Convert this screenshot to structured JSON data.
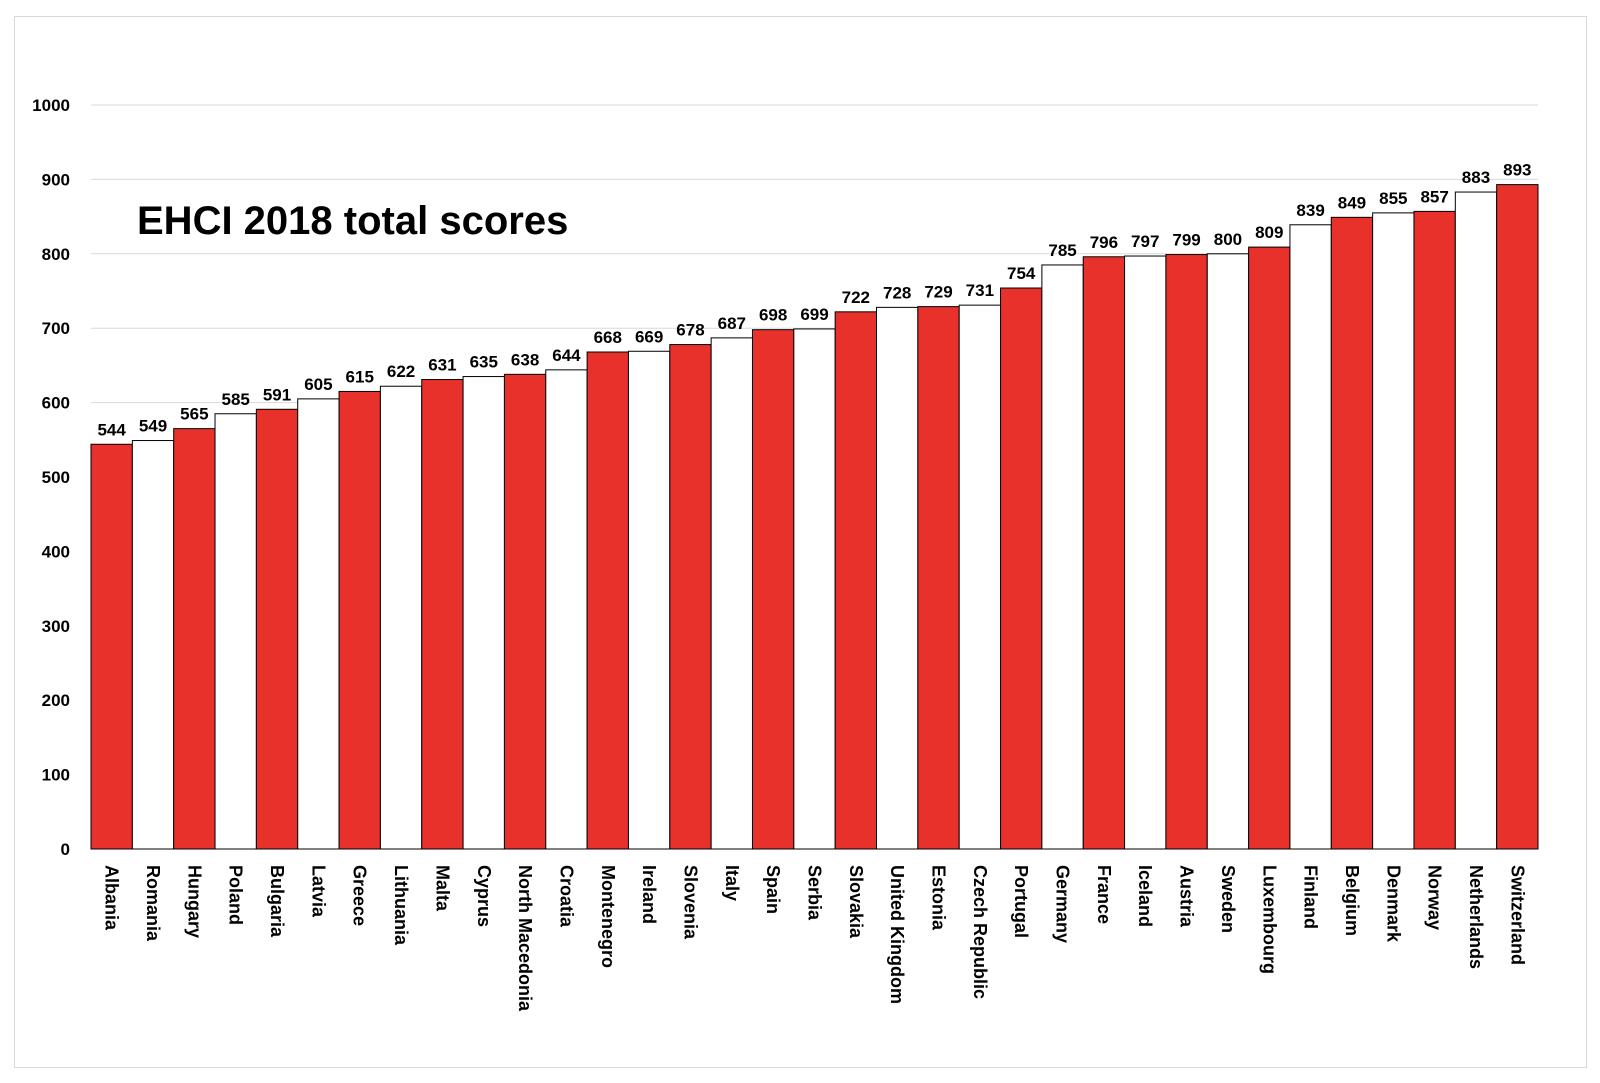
{
  "chart_data": {
    "type": "bar",
    "title": "EHCI 2018 total scores",
    "xlabel": "",
    "ylabel": "",
    "ylim": [
      0,
      1000
    ],
    "yticks": [
      0,
      100,
      200,
      300,
      400,
      500,
      600,
      700,
      800,
      900,
      1000
    ],
    "grid": true,
    "legend": "none",
    "categories": [
      "Albania",
      "Romania",
      "Hungary",
      "Poland",
      "Bulgaria",
      "Latvia",
      "Greece",
      "Lithuania",
      "Malta",
      "Cyprus",
      "North Macedonia",
      "Croatia",
      "Montenegro",
      "Ireland",
      "Slovenia",
      "Italy",
      "Spain",
      "Serbia",
      "Slovakia",
      "United Kingdom",
      "Estonia",
      "Czech Republic",
      "Portugal",
      "Germany",
      "France",
      "Iceland",
      "Austria",
      "Sweden",
      "Luxembourg",
      "Finland",
      "Belgium",
      "Denmark",
      "Norway",
      "Netherlands",
      "Switzerland"
    ],
    "values": [
      544,
      549,
      565,
      585,
      591,
      605,
      615,
      622,
      631,
      635,
      638,
      644,
      668,
      669,
      678,
      687,
      698,
      699,
      722,
      728,
      729,
      731,
      754,
      785,
      796,
      797,
      799,
      800,
      809,
      839,
      849,
      855,
      857,
      883,
      893
    ],
    "bar_fill_pattern": [
      "red",
      "white"
    ],
    "colors": {
      "red": "#e8312a",
      "white": "#ffffff",
      "outline": "#000000",
      "grid": "#d9d9d9"
    }
  }
}
